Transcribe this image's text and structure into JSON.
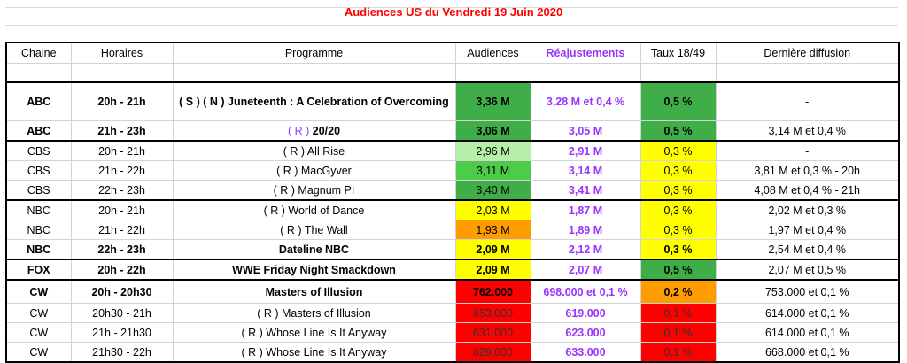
{
  "title": "Audiences US du Vendredi 19 Juin 2020",
  "headers": {
    "chaine": "Chaine",
    "horaires": "Horaires",
    "programme": "Programme",
    "audiences": "Audiences",
    "reajustements": "Réajustements",
    "taux": "Taux 18/49",
    "derniere": "Dernière diffusion"
  },
  "colors": {
    "title": "#ff0000",
    "reajustements": "#9933ff",
    "green_dark": "#3fae49",
    "green_mid": "#4ccc48",
    "green_light": "#b6f0a8",
    "yellow": "#ffff00",
    "orange": "#ff9c00",
    "red": "#ff0000"
  },
  "rows": [
    {
      "chaine": "ABC",
      "horaires": "20h - 21h",
      "programme": "( S ) ( N ) Juneteenth : A Celebration of Overcoming",
      "audiences": "3,36 M",
      "reajustements": "3,28 M et 0,4 %",
      "taux": "0,5 %",
      "derniere": "-"
    },
    {
      "chaine": "ABC",
      "horaires": "21h - 23h",
      "programme_prefix": "( R )",
      "programme": "20/20",
      "audiences": "3,06 M",
      "reajustements": "3,05 M",
      "taux": "0,5 %",
      "derniere": "3,14 M et 0,4 %"
    },
    {
      "chaine": "CBS",
      "horaires": "20h - 21h",
      "programme": "( R ) All Rise",
      "audiences": "2,96 M",
      "reajustements": "2,91 M",
      "taux": "0,3 %",
      "derniere": "-"
    },
    {
      "chaine": "CBS",
      "horaires": "21h - 22h",
      "programme": "( R ) MacGyver",
      "audiences": "3,11 M",
      "reajustements": "3,14 M",
      "taux": "0,3 %",
      "derniere": "3,81 M et 0,3 % - 20h"
    },
    {
      "chaine": "CBS",
      "horaires": "22h - 23h",
      "programme": "( R ) Magnum PI",
      "audiences": "3,40 M",
      "reajustements": "3,41 M",
      "taux": "0,3 %",
      "derniere": "4,08 M et 0,4 % - 21h"
    },
    {
      "chaine": "NBC",
      "horaires": "20h - 21h",
      "programme": "( R ) World of Dance",
      "audiences": "2,03 M",
      "reajustements": "1,87 M",
      "taux": "0,3 %",
      "derniere": "2,02 M et 0,3 %"
    },
    {
      "chaine": "NBC",
      "horaires": "21h - 22h",
      "programme": "( R ) The Wall",
      "audiences": "1,93 M",
      "reajustements": "1,89 M",
      "taux": "0,3 %",
      "derniere": "1,97 M et 0,4 %"
    },
    {
      "chaine": "NBC",
      "horaires": "22h - 23h",
      "programme": "Dateline NBC",
      "audiences": "2,09 M",
      "reajustements": "2,12 M",
      "taux": "0,3 %",
      "derniere": "2,54 M et 0,4 %"
    },
    {
      "chaine": "FOX",
      "horaires": "20h - 22h",
      "programme": "WWE Friday Night Smackdown",
      "audiences": "2,09 M",
      "reajustements": "2,07 M",
      "taux": "0,5 %",
      "derniere": "2,07 M et 0,5 %"
    },
    {
      "chaine": "CW",
      "horaires": "20h - 20h30",
      "programme": "Masters of Illusion",
      "audiences": "762.000",
      "reajustements": "698.000 et 0,1 %",
      "taux": "0,2 %",
      "derniere": "753.000 et 0,1 %"
    },
    {
      "chaine": "CW",
      "horaires": "20h30 - 21h",
      "programme": "( R ) Masters of Illusion",
      "audiences": "653.000",
      "reajustements": "619.000",
      "taux": "0,1 %",
      "derniere": "614.000 et 0,1 %"
    },
    {
      "chaine": "CW",
      "horaires": "21h - 21h30",
      "programme": "( R ) Whose Line Is It Anyway",
      "audiences": "631.000",
      "reajustements": "623.000",
      "taux": "0,1 %",
      "derniere": "614.000 et 0,1 %"
    },
    {
      "chaine": "CW",
      "horaires": "21h30 - 22h",
      "programme": "( R ) Whose Line Is It Anyway",
      "audiences": "629.000",
      "reajustements": "633.000",
      "taux": "0,1 %",
      "derniere": "668.000 et 0,1 %"
    }
  ]
}
